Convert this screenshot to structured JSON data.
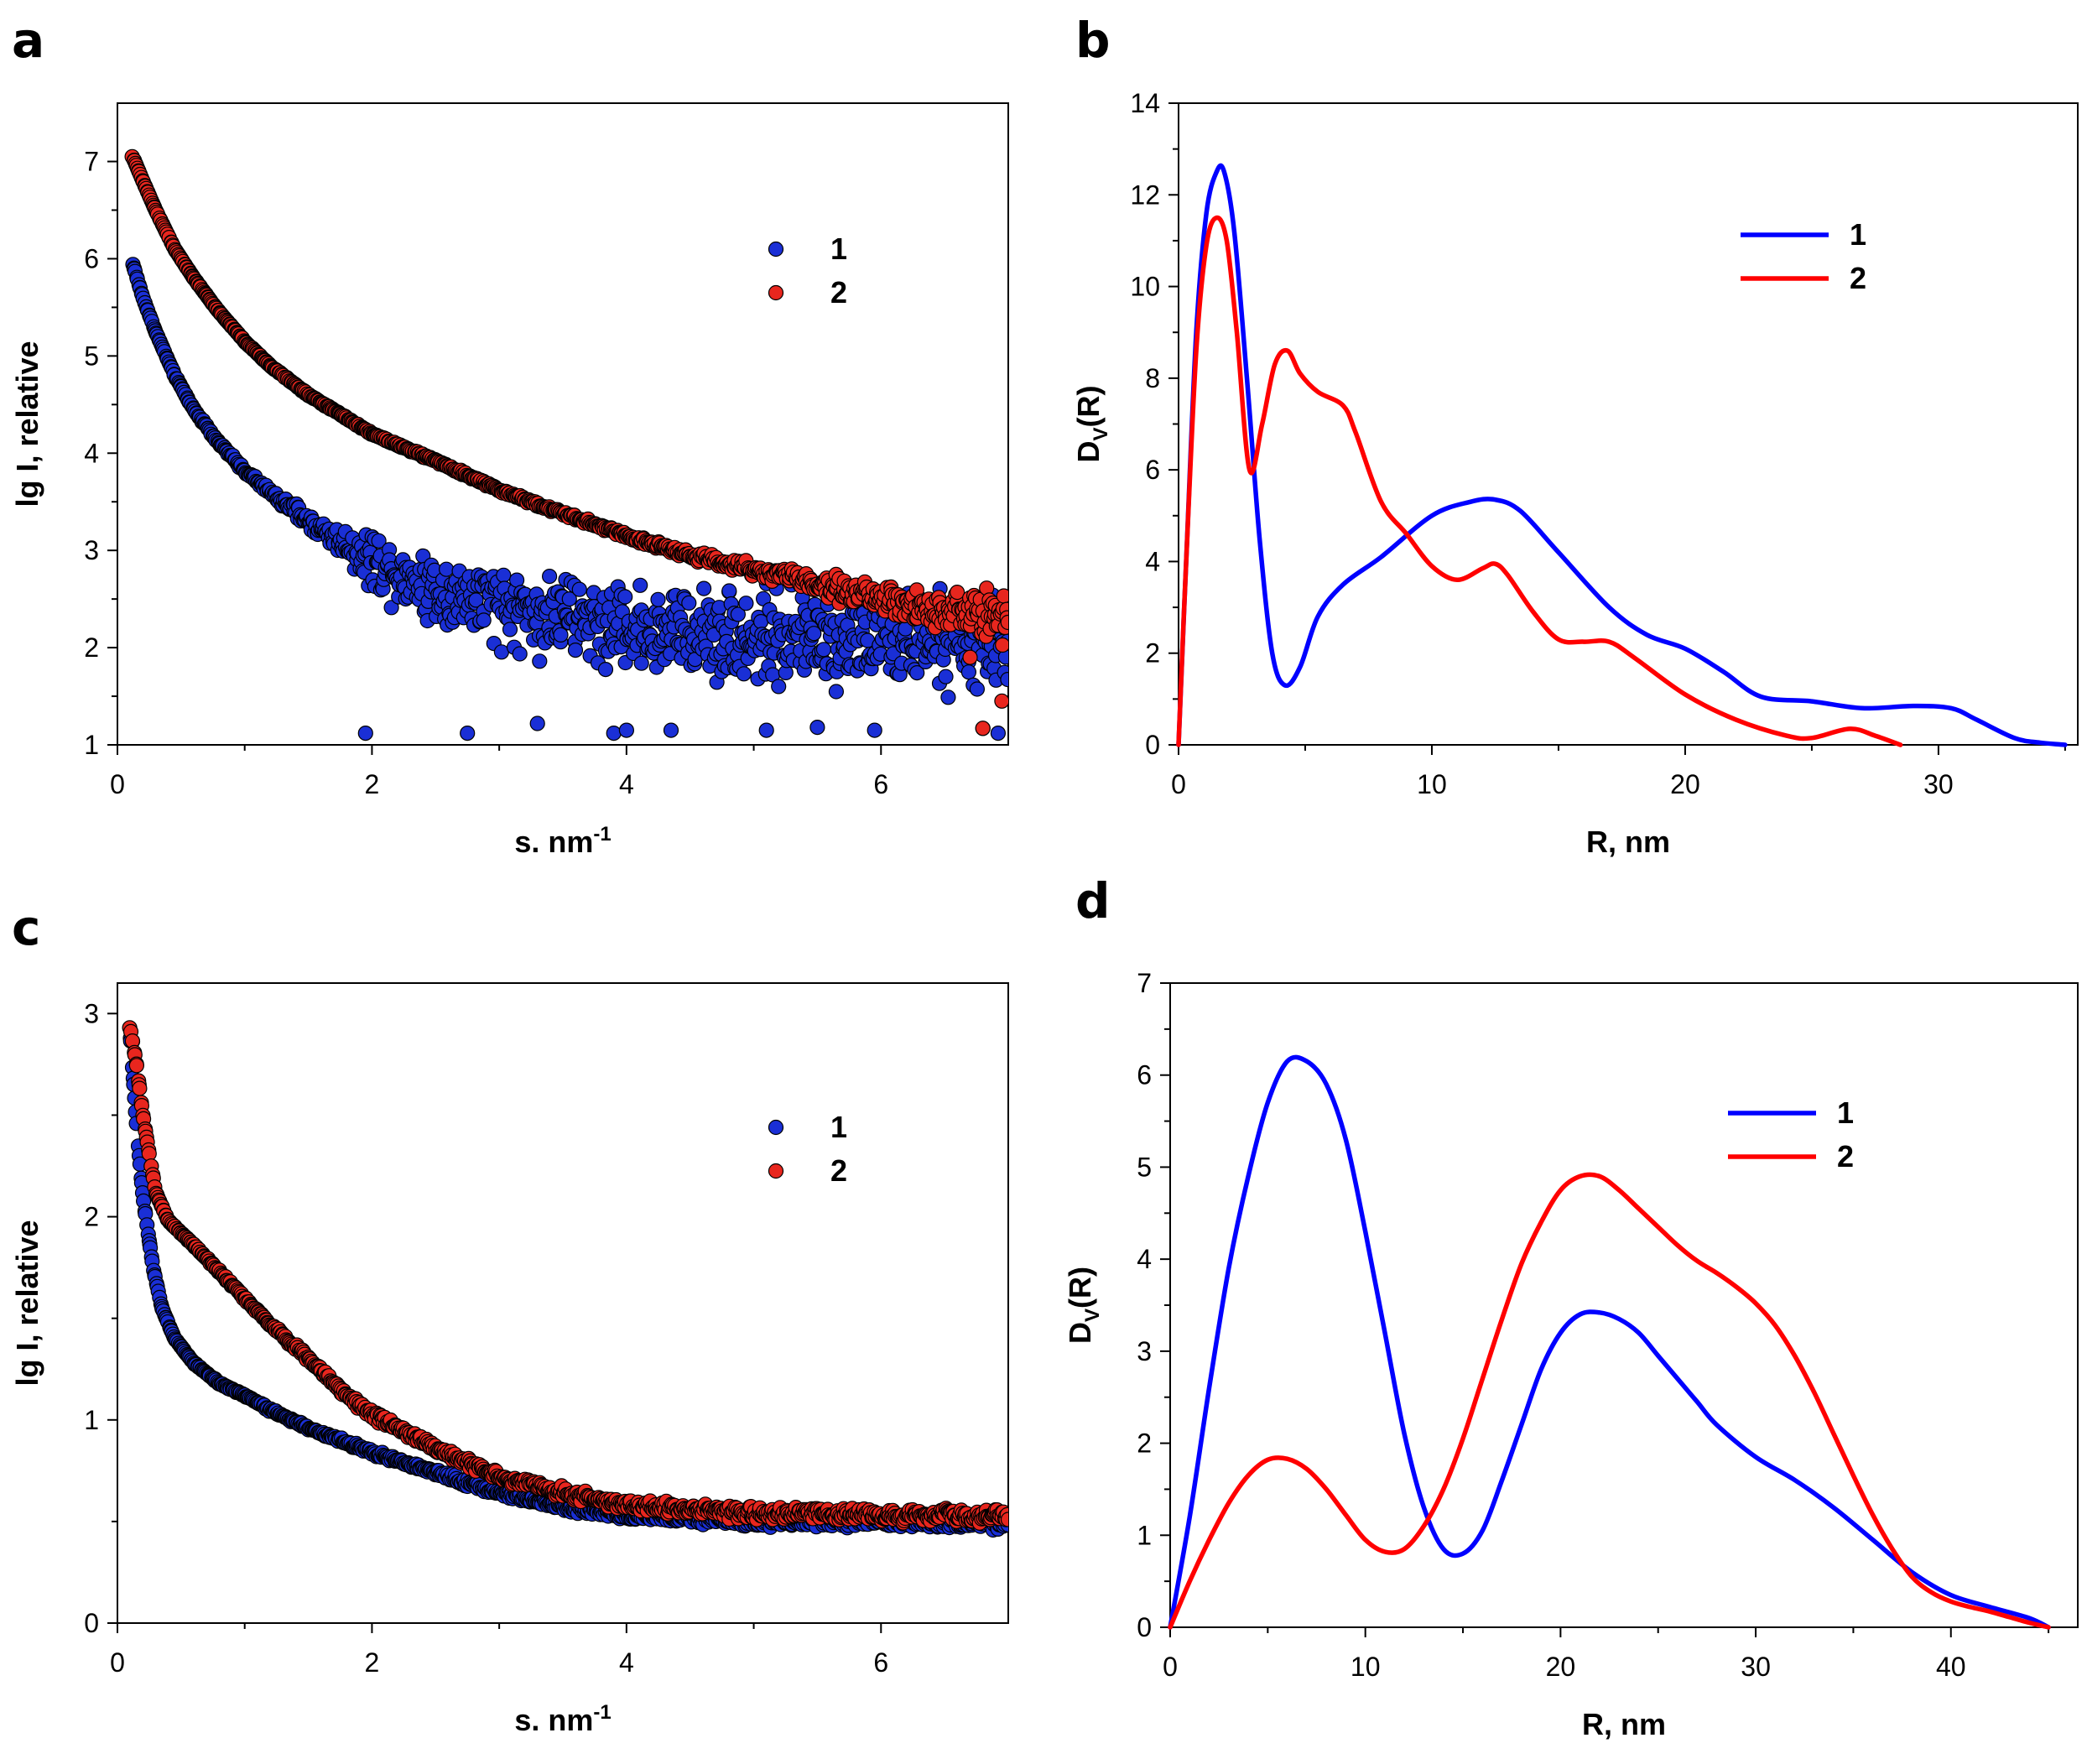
{
  "colors": {
    "series1": "#0000ff",
    "series2": "#ff0000",
    "marker1": "#1a2fd6",
    "marker2": "#e8261e",
    "axis": "#000000"
  },
  "panels": {
    "a": {
      "letter": "a"
    },
    "b": {
      "letter": "b"
    },
    "c": {
      "letter": "c"
    },
    "d": {
      "letter": "d"
    }
  },
  "chart_data": [
    {
      "id": "a",
      "type": "scatter",
      "title": "",
      "xlabel": "s. nm",
      "xlabel_sup": "-1",
      "ylabel": "lg I, relative",
      "xlim": [
        0,
        7
      ],
      "ylim": [
        1,
        7.6
      ],
      "xticks": [
        0,
        2,
        4,
        6
      ],
      "yticks": [
        1,
        2,
        3,
        4,
        5,
        6,
        7
      ],
      "legend": {
        "position": "top-right",
        "entries": [
          "1",
          "2"
        ]
      },
      "grid": false,
      "series": [
        {
          "name": "1",
          "curve": [
            [
              0.12,
              5.95
            ],
            [
              0.2,
              5.6
            ],
            [
              0.3,
              5.25
            ],
            [
              0.45,
              4.8
            ],
            [
              0.6,
              4.45
            ],
            [
              0.8,
              4.1
            ],
            [
              1.0,
              3.82
            ],
            [
              1.2,
              3.6
            ],
            [
              1.5,
              3.3
            ],
            [
              1.8,
              3.05
            ],
            [
              2.0,
              2.9
            ],
            [
              2.5,
              2.6
            ],
            [
              3.0,
              2.42
            ],
            [
              4.0,
              2.22
            ],
            [
              5.0,
              2.12
            ],
            [
              6.0,
              2.06
            ],
            [
              7.0,
              2.02
            ]
          ],
          "scatter_amplitude": [
            [
              0.12,
              0.0
            ],
            [
              1.2,
              0.05
            ],
            [
              1.7,
              0.18
            ],
            [
              2.0,
              0.4
            ],
            [
              2.5,
              0.55
            ],
            [
              4.0,
              0.65
            ],
            [
              7.0,
              0.65
            ]
          ],
          "outliers": [
            [
              1.95,
              1.12
            ],
            [
              2.75,
              1.12
            ],
            [
              3.3,
              1.22
            ],
            [
              3.9,
              1.12
            ],
            [
              4.0,
              1.15
            ],
            [
              4.35,
              1.15
            ],
            [
              5.1,
              1.15
            ],
            [
              5.5,
              1.18
            ],
            [
              5.95,
              1.15
            ],
            [
              6.8,
              1.17
            ],
            [
              6.92,
              1.12
            ]
          ]
        },
        {
          "name": "2",
          "curve": [
            [
              0.12,
              7.05
            ],
            [
              0.2,
              6.8
            ],
            [
              0.3,
              6.5
            ],
            [
              0.45,
              6.1
            ],
            [
              0.6,
              5.8
            ],
            [
              0.8,
              5.45
            ],
            [
              1.0,
              5.15
            ],
            [
              1.2,
              4.9
            ],
            [
              1.5,
              4.6
            ],
            [
              2.0,
              4.2
            ],
            [
              2.5,
              3.92
            ],
            [
              3.0,
              3.62
            ],
            [
              3.5,
              3.38
            ],
            [
              4.0,
              3.15
            ],
            [
              4.5,
              2.95
            ],
            [
              5.0,
              2.8
            ],
            [
              5.5,
              2.66
            ],
            [
              6.0,
              2.5
            ],
            [
              6.5,
              2.38
            ],
            [
              7.0,
              2.3
            ]
          ],
          "scatter_amplitude": [
            [
              0.12,
              0.0
            ],
            [
              4.0,
              0.04
            ],
            [
              5.0,
              0.1
            ],
            [
              6.0,
              0.2
            ],
            [
              7.0,
              0.35
            ]
          ],
          "outliers": [
            [
              6.8,
              1.17
            ],
            [
              6.95,
              1.45
            ],
            [
              6.7,
              1.9
            ]
          ]
        }
      ]
    },
    {
      "id": "b",
      "type": "line",
      "title": "",
      "xlabel": "R, nm",
      "ylabel": "D",
      "ylabel_sub": "V",
      "ylabel_suffix": "(R)",
      "xlim": [
        0,
        35.5
      ],
      "ylim": [
        0,
        14
      ],
      "xticks": [
        0,
        10,
        20,
        30
      ],
      "yticks": [
        0,
        2,
        4,
        6,
        8,
        10,
        12,
        14
      ],
      "legend": {
        "position": "top-right",
        "entries": [
          "1",
          "2"
        ]
      },
      "grid": false,
      "series": [
        {
          "name": "1",
          "x": [
            0,
            0.3,
            0.7,
            1.1,
            1.5,
            1.8,
            2.2,
            2.7,
            3.2,
            3.7,
            4.2,
            4.8,
            5.5,
            6.5,
            8.0,
            10.0,
            11.5,
            12.5,
            13.5,
            15.0,
            17.0,
            18.5,
            20.0,
            21.5,
            23.0,
            25.0,
            27.0,
            29.0,
            30.5,
            31.5,
            33.0,
            34.0,
            35.0
          ],
          "values": [
            0,
            4.0,
            9.0,
            11.6,
            12.5,
            12.5,
            11.2,
            8.0,
            4.5,
            2.0,
            1.3,
            1.7,
            2.8,
            3.5,
            4.1,
            5.0,
            5.3,
            5.35,
            5.1,
            4.2,
            3.0,
            2.4,
            2.1,
            1.6,
            1.05,
            0.95,
            0.8,
            0.85,
            0.8,
            0.55,
            0.15,
            0.05,
            0.0
          ]
        },
        {
          "name": "2",
          "x": [
            0,
            0.3,
            0.7,
            1.1,
            1.5,
            1.9,
            2.3,
            2.8,
            3.3,
            3.8,
            4.3,
            4.8,
            5.5,
            6.5,
            7.0,
            8.0,
            9.0,
            10.0,
            11.0,
            12.0,
            12.5,
            13.0,
            14.0,
            15.0,
            16.0,
            17.0,
            18.0,
            20.0,
            22.0,
            24.0,
            25.0,
            26.5,
            27.5,
            28.5
          ],
          "values": [
            0,
            4.0,
            8.6,
            10.9,
            11.5,
            11.0,
            9.0,
            6.0,
            7.0,
            8.3,
            8.6,
            8.1,
            7.7,
            7.4,
            6.8,
            5.3,
            4.6,
            3.9,
            3.6,
            3.85,
            3.95,
            3.7,
            2.9,
            2.3,
            2.25,
            2.25,
            1.9,
            1.1,
            0.55,
            0.2,
            0.15,
            0.35,
            0.2,
            0.0
          ]
        }
      ]
    },
    {
      "id": "c",
      "type": "scatter",
      "title": "",
      "xlabel": "s. nm",
      "xlabel_sup": "-1",
      "ylabel": "lg I, relative",
      "xlim": [
        0,
        7
      ],
      "ylim": [
        0,
        3.15
      ],
      "xticks": [
        0,
        2,
        4,
        6
      ],
      "yticks": [
        0,
        1,
        2,
        3
      ],
      "legend": {
        "position": "top-right",
        "entries": [
          "1",
          "2"
        ]
      },
      "grid": false,
      "series": [
        {
          "name": "1",
          "curve": [
            [
              0.1,
              2.9
            ],
            [
              0.15,
              2.45
            ],
            [
              0.2,
              2.1
            ],
            [
              0.28,
              1.75
            ],
            [
              0.35,
              1.55
            ],
            [
              0.45,
              1.4
            ],
            [
              0.6,
              1.28
            ],
            [
              0.8,
              1.18
            ],
            [
              1.0,
              1.12
            ],
            [
              1.2,
              1.05
            ],
            [
              1.5,
              0.96
            ],
            [
              2.0,
              0.84
            ],
            [
              2.5,
              0.74
            ],
            [
              3.0,
              0.64
            ],
            [
              3.5,
              0.57
            ],
            [
              4.0,
              0.53
            ],
            [
              5.0,
              0.5
            ],
            [
              6.0,
              0.5
            ],
            [
              7.0,
              0.49
            ]
          ],
          "scatter_amplitude": [
            [
              0.1,
              0.0
            ],
            [
              2.0,
              0.02
            ],
            [
              3.5,
              0.03
            ],
            [
              7.0,
              0.04
            ]
          ],
          "outliers": []
        },
        {
          "name": "2",
          "curve": [
            [
              0.1,
              2.93
            ],
            [
              0.15,
              2.75
            ],
            [
              0.2,
              2.5
            ],
            [
              0.3,
              2.12
            ],
            [
              0.4,
              1.98
            ],
            [
              0.6,
              1.86
            ],
            [
              0.8,
              1.73
            ],
            [
              1.0,
              1.6
            ],
            [
              1.2,
              1.47
            ],
            [
              1.5,
              1.3
            ],
            [
              1.8,
              1.12
            ],
            [
              2.0,
              1.03
            ],
            [
              2.5,
              0.86
            ],
            [
              3.0,
              0.72
            ],
            [
              3.5,
              0.64
            ],
            [
              4.0,
              0.58
            ],
            [
              5.0,
              0.54
            ],
            [
              6.0,
              0.53
            ],
            [
              7.0,
              0.53
            ]
          ],
          "scatter_amplitude": [
            [
              0.1,
              0.0
            ],
            [
              2.0,
              0.03
            ],
            [
              3.5,
              0.04
            ],
            [
              7.0,
              0.05
            ]
          ],
          "outliers": []
        }
      ]
    },
    {
      "id": "d",
      "type": "line",
      "title": "",
      "xlabel": "R, nm",
      "ylabel": "D",
      "ylabel_sub": "V",
      "ylabel_suffix": "(R)",
      "xlim": [
        0,
        46.5
      ],
      "ylim": [
        0,
        7
      ],
      "xticks": [
        0,
        10,
        20,
        30,
        40
      ],
      "yticks": [
        0,
        1,
        2,
        3,
        4,
        5,
        6,
        7
      ],
      "legend": {
        "position": "top-right",
        "entries": [
          "1",
          "2"
        ]
      },
      "grid": false,
      "series": [
        {
          "name": "1",
          "x": [
            0,
            1,
            2,
            3,
            4,
            5,
            6,
            7,
            8,
            9,
            10,
            11,
            12,
            13,
            14,
            15,
            16,
            17,
            18,
            19,
            20,
            21,
            22,
            23,
            24,
            25,
            26,
            27,
            28,
            30,
            32,
            34,
            36,
            38,
            40,
            42,
            44,
            45
          ],
          "values": [
            0,
            1.2,
            2.6,
            3.9,
            4.9,
            5.7,
            6.15,
            6.15,
            5.9,
            5.3,
            4.3,
            3.2,
            2.1,
            1.3,
            0.85,
            0.8,
            1.05,
            1.6,
            2.2,
            2.8,
            3.2,
            3.4,
            3.42,
            3.35,
            3.2,
            2.95,
            2.7,
            2.45,
            2.2,
            1.85,
            1.6,
            1.3,
            0.95,
            0.6,
            0.35,
            0.22,
            0.1,
            0.0
          ]
        },
        {
          "name": "2",
          "x": [
            0,
            1,
            2,
            3,
            4,
            5,
            6,
            7,
            8,
            9,
            10,
            11,
            12,
            13,
            14,
            15,
            16,
            17,
            18,
            19,
            20,
            21,
            22,
            23,
            24,
            25,
            26,
            27,
            28,
            29,
            30,
            31,
            32,
            33,
            34,
            35,
            36,
            37,
            38,
            39,
            40,
            41,
            42,
            43,
            44,
            45
          ],
          "values": [
            0,
            0.5,
            0.95,
            1.35,
            1.65,
            1.82,
            1.83,
            1.72,
            1.5,
            1.22,
            0.95,
            0.82,
            0.85,
            1.1,
            1.5,
            2.05,
            2.7,
            3.35,
            3.95,
            4.4,
            4.75,
            4.9,
            4.9,
            4.75,
            4.55,
            4.35,
            4.15,
            3.98,
            3.85,
            3.7,
            3.52,
            3.28,
            2.95,
            2.55,
            2.1,
            1.65,
            1.22,
            0.85,
            0.55,
            0.38,
            0.28,
            0.22,
            0.17,
            0.11,
            0.05,
            0.0
          ]
        }
      ]
    }
  ]
}
